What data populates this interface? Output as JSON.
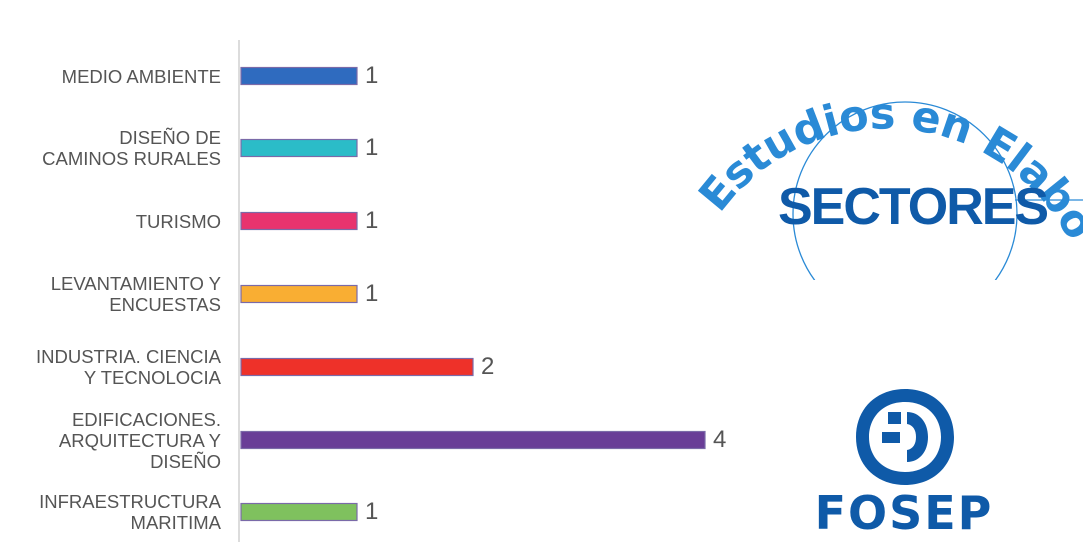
{
  "chart_data": {
    "type": "bar",
    "orientation": "horizontal",
    "categories": [
      "MEDIO AMBIENTE",
      "DISEÑO DE\nCAMINOS RURALES",
      "TURISMO",
      "LEVANTAMIENTO Y\nENCUESTAS",
      "INDUSTRIA. CIENCIA\nY TECNOLOCIA",
      "EDIFICACIONES.\nARQUITECTURA Y\nDISEÑO",
      "INFRAESTRUCTURA\nMARITIMA"
    ],
    "values": [
      1,
      1,
      1,
      1,
      2,
      4,
      1
    ],
    "data_labels": [
      "1",
      "1",
      "1",
      "1",
      "2",
      "4",
      "1"
    ],
    "bar_colors": [
      "#2f6bbf",
      "#2bbcc8",
      "#e8336e",
      "#f9ae33",
      "#ee3129",
      "#693d97",
      "#7fc15e"
    ],
    "xlim": [
      0,
      4
    ],
    "grid": false,
    "legend": "none"
  },
  "branding": {
    "title_arc": "Estudios en Elaboración",
    "subtitle": "SECTORES",
    "org_name": "FOSEP",
    "accent_color": "#2a8ad6",
    "logo_color": "#0f5aa8",
    "circle_color": "#2a8ad6"
  }
}
